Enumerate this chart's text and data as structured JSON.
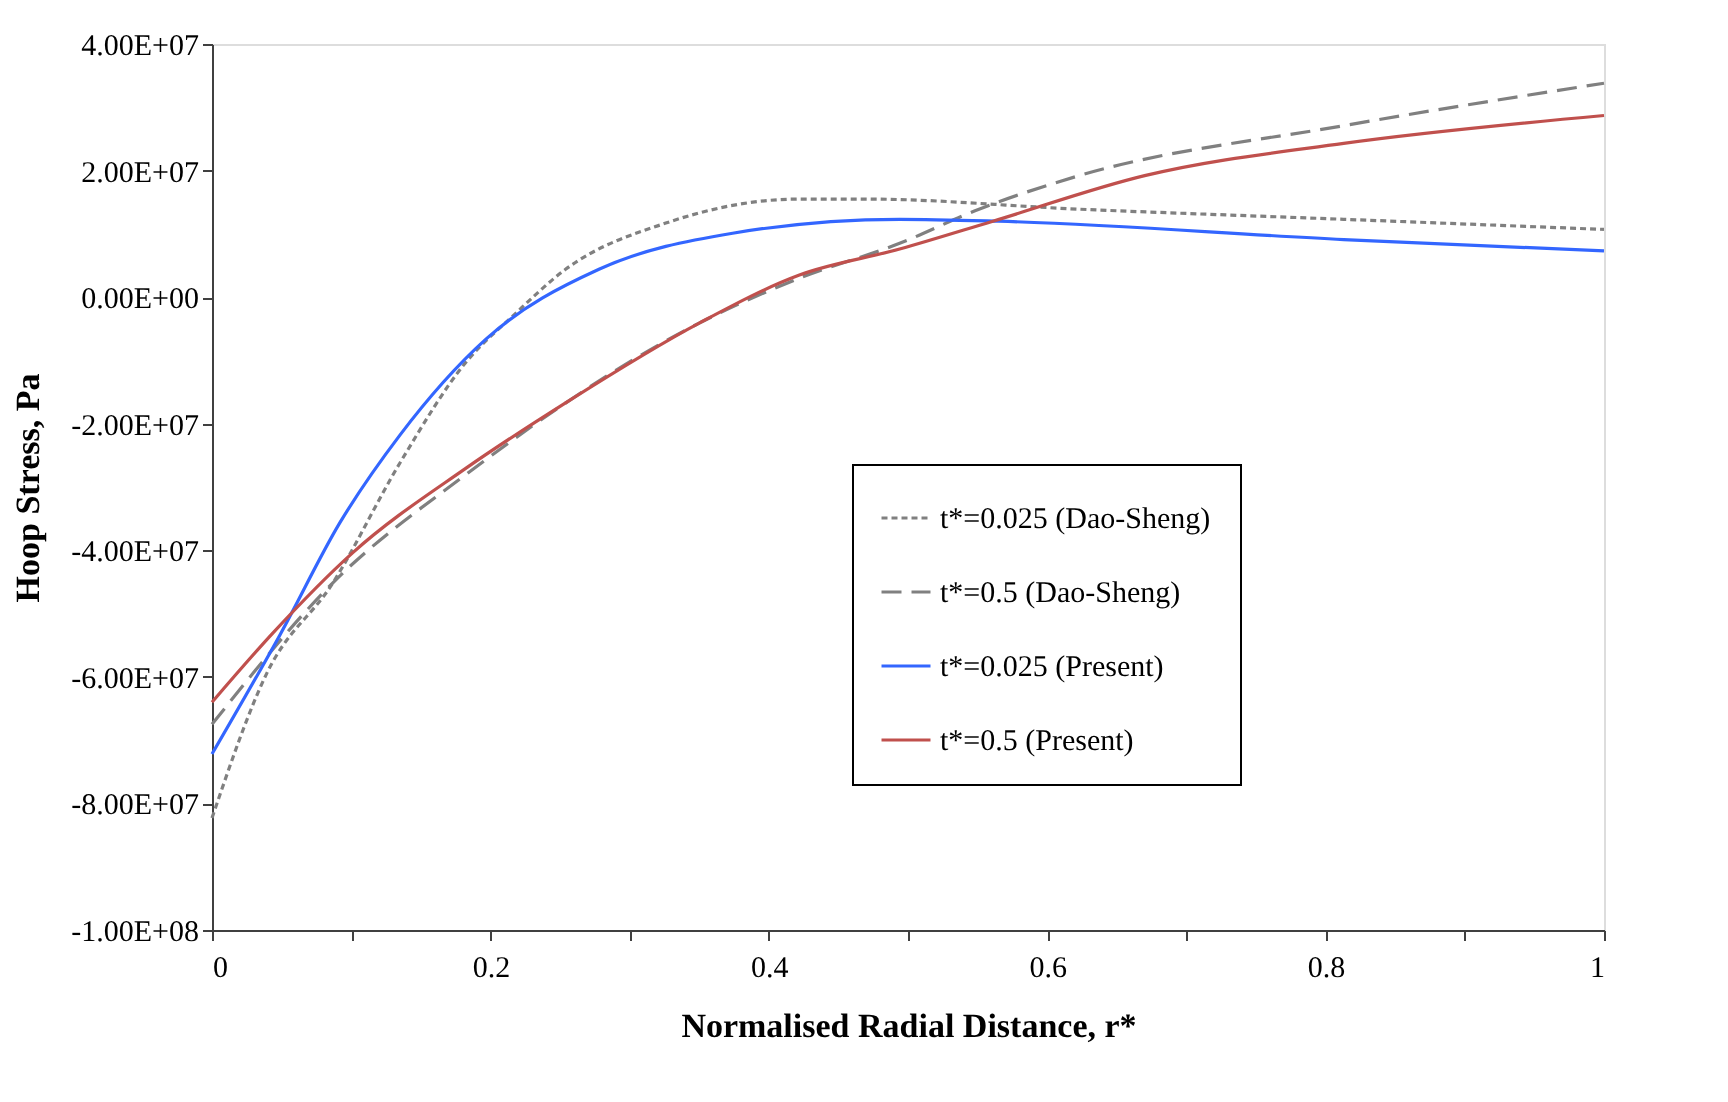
{
  "chart_data": {
    "type": "line",
    "xlabel": "Normalised Radial Distance, r*",
    "ylabel": "Hoop Stress, Pa",
    "xlim": [
      0,
      1
    ],
    "xticks": [
      0,
      {
        "value": 0.1,
        "label": null
      },
      0.2,
      {
        "value": 0.3,
        "label": null
      },
      0.4,
      {
        "value": 0.5,
        "label": null
      },
      0.6,
      {
        "value": 0.7,
        "label": null
      },
      0.8,
      {
        "value": 0.9,
        "label": null
      },
      1
    ],
    "ylim": [
      -100000000,
      40000000
    ],
    "yticks": [
      {
        "value": -100000000,
        "label": "-1.00E+08"
      },
      {
        "value": -80000000,
        "label": "-8.00E+07"
      },
      {
        "value": -60000000,
        "label": "-6.00E+07"
      },
      {
        "value": -40000000,
        "label": "-4.00E+07"
      },
      {
        "value": -20000000,
        "label": "-2.00E+07"
      },
      {
        "value": 0,
        "label": "0.00E+00"
      },
      {
        "value": 20000000,
        "label": "2.00E+07"
      },
      {
        "value": 40000000,
        "label": "4.00E+07"
      }
    ],
    "grid": false,
    "legend": "right",
    "marker": "none",
    "series": [
      {
        "name": "t*=0.025 (Dao-Sheng)",
        "color": "#808080",
        "line_style": "dotted",
        "x": [
          0,
          0.039,
          0.087,
          0.135,
          0.182,
          0.217,
          0.254,
          0.326,
          0.422,
          0.469,
          0.623,
          0.813,
          1
        ],
        "values": [
          -82300000,
          -59600000,
          -45100000,
          -26200000,
          -10400000,
          -2800000,
          4400000,
          11700000,
          15500000,
          15500000,
          13900000,
          12300000,
          10700000
        ]
      },
      {
        "name": "t*=0.5 (Dao-Sheng)",
        "color": "#808080",
        "line_style": "dashed",
        "x": [
          0,
          0.087,
          0.182,
          0.35,
          0.422,
          0.494,
          0.551,
          0.623,
          0.813,
          1
        ],
        "values": [
          -67500000,
          -45100000,
          -28100000,
          -4100000,
          3000000,
          8500000,
          13900000,
          19200000,
          27100000,
          33800000
        ]
      },
      {
        "name": "t*=0.025 (Present)",
        "color": "#3366ff",
        "line_style": "solid",
        "x": [
          0,
          0.049,
          0.092,
          0.135,
          0.197,
          0.278,
          0.374,
          0.494,
          0.565,
          0.813,
          1
        ],
        "values": [
          -72200000,
          -53300000,
          -35600000,
          -21800000,
          -6600000,
          4400000,
          10100000,
          12300000,
          12000000,
          9100000,
          7300000
        ]
      },
      {
        "name": "t*=0.5 (Present)",
        "color": "#c0504d",
        "line_style": "solid",
        "x": [
          0,
          0.044,
          0.101,
          0.182,
          0.254,
          0.35,
          0.422,
          0.494,
          0.561,
          0.67,
          0.813,
          1
        ],
        "values": [
          -64000000,
          -53000000,
          -40400000,
          -27100000,
          -16700000,
          -4100000,
          3500000,
          7600000,
          12000000,
          19200000,
          24300000,
          28700000
        ]
      }
    ]
  }
}
